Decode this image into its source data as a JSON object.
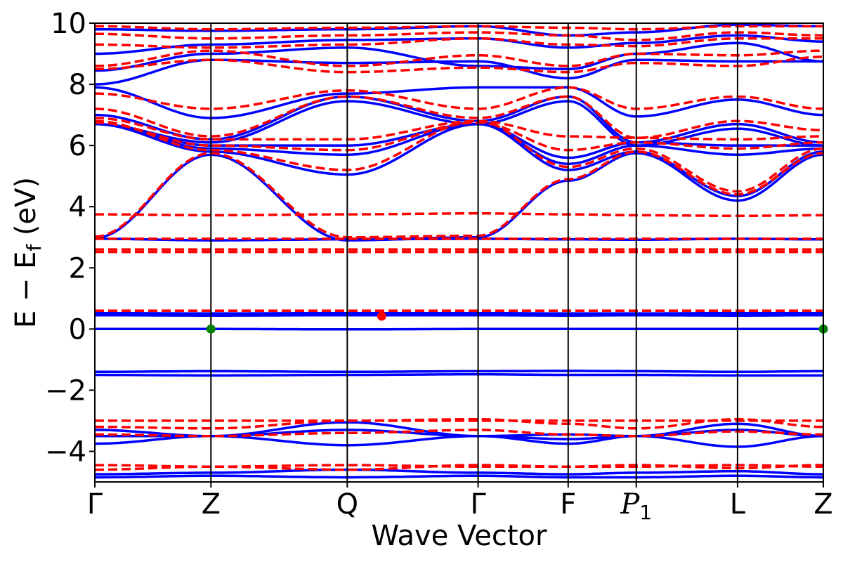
{
  "chart_data": {
    "type": "line",
    "xlabel": "Wave Vector",
    "ylabel": "E − E_f (eV)",
    "ylabel_parts": {
      "main": "E − E",
      "sub": "f",
      "unit": " (eV)"
    },
    "ylim": [
      -5,
      10
    ],
    "yticks": [
      -4,
      -2,
      0,
      2,
      4,
      6,
      8,
      10
    ],
    "ytick_labels": [
      "−4",
      "−2",
      "0",
      "2",
      "4",
      "6",
      "8",
      "10"
    ],
    "xlim": [
      0,
      8
    ],
    "kpath": [
      {
        "label": "Γ",
        "x": 0
      },
      {
        "label": "Z",
        "x": 1.275
      },
      {
        "label": "Q",
        "x": 2.772
      },
      {
        "label": "Γ",
        "x": 4.209
      },
      {
        "label": "F",
        "x": 5.198
      },
      {
        "label": "P",
        "sub": "1",
        "italic": true,
        "x": 5.946
      },
      {
        "label": "L",
        "x": 7.058
      },
      {
        "label": "Z",
        "x": 8
      }
    ],
    "grid": false,
    "legend": "none",
    "colors": {
      "solid": "#0000ff",
      "dashed": "#ff0000",
      "vbm_marker": "#008000",
      "cbm_marker": "#ff0000"
    },
    "series": [
      {
        "style": "solid",
        "knots": [
          [
            -4.85,
            -4.8,
            -4.85,
            -4.8,
            -4.85,
            -4.85,
            -4.8,
            -4.85
          ],
          [
            -4.75,
            -4.7,
            -4.6,
            -4.7,
            -4.75,
            -4.7,
            -4.65,
            -4.75
          ],
          [
            -3.75,
            -3.5,
            -3.8,
            -3.5,
            -3.75,
            -3.5,
            -3.1,
            -3.5
          ],
          [
            -3.5,
            -3.5,
            -3.05,
            -3.5,
            -3.45,
            -3.5,
            -3.85,
            -3.5
          ],
          [
            -3.3,
            -3.5,
            -3.3,
            -3.5,
            -3.6,
            -3.5,
            -3.3,
            -3.5
          ],
          [
            -1.5,
            -1.52,
            -1.5,
            -1.48,
            -1.5,
            -1.5,
            -1.52,
            -1.52
          ],
          [
            -1.4,
            -1.38,
            -1.4,
            -1.38,
            -1.37,
            -1.38,
            -1.4,
            -1.38
          ],
          [
            0.0,
            0.0,
            -0.01,
            0.0,
            0.0,
            0.0,
            0.0,
            0.0
          ],
          [
            0.45,
            0.44,
            0.45,
            0.45,
            0.44,
            0.45,
            0.44,
            0.45
          ],
          [
            0.52,
            0.51,
            0.52,
            0.52,
            0.51,
            0.51,
            0.52,
            0.52
          ],
          [
            2.95,
            2.9,
            2.93,
            2.95,
            2.93,
            2.92,
            2.95,
            2.93
          ],
          [
            2.98,
            5.7,
            2.9,
            3.0,
            4.85,
            5.75,
            4.2,
            5.7
          ],
          [
            6.7,
            5.8,
            5.05,
            6.7,
            5.2,
            5.8,
            4.35,
            5.8
          ],
          [
            6.7,
            5.9,
            5.7,
            6.7,
            5.4,
            6.0,
            5.7,
            5.9
          ],
          [
            6.7,
            6.0,
            6.0,
            6.7,
            5.6,
            6.1,
            6.0,
            6.0
          ],
          [
            6.7,
            6.1,
            7.45,
            6.7,
            7.45,
            6.0,
            6.55,
            6.0
          ],
          [
            7.0,
            6.2,
            7.6,
            6.8,
            7.6,
            6.1,
            6.7,
            6.1
          ],
          [
            7.9,
            6.9,
            7.7,
            7.9,
            7.9,
            6.95,
            7.5,
            7.0
          ],
          [
            8.0,
            8.8,
            8.7,
            8.75,
            8.2,
            8.8,
            8.75,
            8.75
          ],
          [
            8.45,
            9.0,
            9.2,
            8.6,
            8.5,
            9.0,
            9.35,
            8.75
          ],
          [
            9.0,
            9.3,
            9.45,
            9.5,
            9.2,
            9.35,
            9.6,
            9.4
          ],
          [
            9.8,
            9.75,
            9.8,
            9.9,
            9.6,
            9.7,
            9.95,
            9.9
          ]
        ]
      },
      {
        "style": "dashed",
        "knots": [
          [
            -4.6,
            -4.5,
            -4.45,
            -4.5,
            -4.5,
            -4.5,
            -4.45,
            -4.5
          ],
          [
            -4.45,
            -4.5,
            -4.6,
            -4.45,
            -4.5,
            -4.45,
            -4.55,
            -4.45
          ],
          [
            -3.0,
            -3.0,
            -3.0,
            -3.0,
            -3.0,
            -3.0,
            -3.0,
            -3.0
          ],
          [
            -3.2,
            -3.25,
            -3.0,
            -2.95,
            -3.1,
            -3.25,
            -2.95,
            -3.2
          ],
          [
            -3.45,
            -3.5,
            -3.4,
            -3.3,
            -3.45,
            -3.5,
            -3.35,
            -3.45
          ],
          [
            0.6,
            0.6,
            0.6,
            0.6,
            0.6,
            0.6,
            0.6,
            0.6
          ],
          [
            2.52,
            2.52,
            2.52,
            2.52,
            2.52,
            2.52,
            2.52,
            2.52
          ],
          [
            2.6,
            2.6,
            2.6,
            2.6,
            2.6,
            2.6,
            2.6,
            2.6
          ],
          [
            2.95,
            2.95,
            2.95,
            2.95,
            2.95,
            2.95,
            2.95,
            2.95
          ],
          [
            3.75,
            3.72,
            3.75,
            3.78,
            3.75,
            3.72,
            3.7,
            3.72
          ],
          [
            3.02,
            5.75,
            3.0,
            3.05,
            4.9,
            5.8,
            4.4,
            5.75
          ],
          [
            6.8,
            5.85,
            5.2,
            6.8,
            5.3,
            5.9,
            4.5,
            5.9
          ],
          [
            6.75,
            6.0,
            5.85,
            6.75,
            5.85,
            6.1,
            5.9,
            6.1
          ],
          [
            6.9,
            6.2,
            6.2,
            6.8,
            6.3,
            6.25,
            6.2,
            6.3
          ],
          [
            7.2,
            6.3,
            7.6,
            6.9,
            7.6,
            6.25,
            6.8,
            6.5
          ],
          [
            7.7,
            7.2,
            7.8,
            7.2,
            7.9,
            7.2,
            7.6,
            7.2
          ],
          [
            8.5,
            8.8,
            8.4,
            8.55,
            8.4,
            8.7,
            8.6,
            8.9
          ],
          [
            8.6,
            9.1,
            8.6,
            8.95,
            8.6,
            9.0,
            8.95,
            9.1
          ],
          [
            9.3,
            9.2,
            9.3,
            9.5,
            9.3,
            9.25,
            9.5,
            9.5
          ],
          [
            9.65,
            9.5,
            9.6,
            9.7,
            9.6,
            9.45,
            9.7,
            9.6
          ],
          [
            9.9,
            9.8,
            9.85,
            9.9,
            9.85,
            9.8,
            9.9,
            9.9
          ]
        ]
      }
    ],
    "markers": [
      {
        "x": 1.275,
        "y": 0.0,
        "color": "green"
      },
      {
        "x": 8.0,
        "y": 0.0,
        "color": "green"
      },
      {
        "x": 3.15,
        "y": 0.42,
        "color": "red"
      }
    ]
  }
}
